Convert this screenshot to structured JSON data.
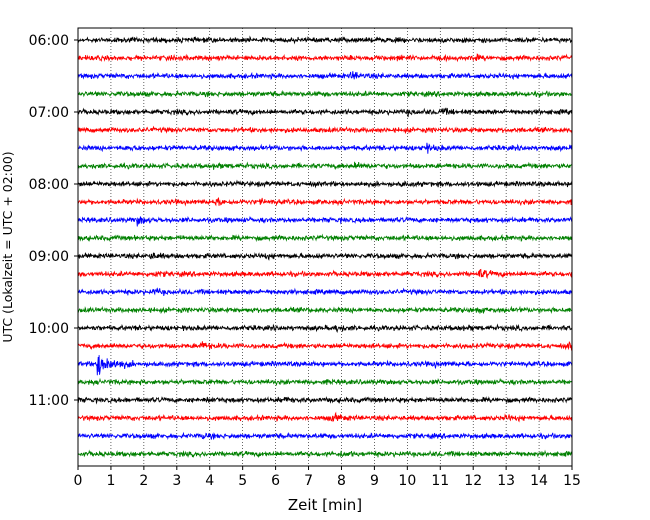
{
  "chart_data": {
    "type": "line",
    "title": "",
    "xlabel": "Zeit  [min]",
    "ylabel": "UTC (Lokalzeit = UTC + 02:00)",
    "xlim": [
      0,
      15
    ],
    "x_ticks": [
      "0",
      "1",
      "2",
      "3",
      "4",
      "5",
      "6",
      "7",
      "8",
      "9",
      "10",
      "11",
      "12",
      "13",
      "14",
      "15"
    ],
    "y_tick_labels": [
      "06:00",
      "07:00",
      "08:00",
      "09:00",
      "10:00",
      "11:00"
    ],
    "grid": "vertical dotted",
    "trace_start_times": [
      "06:00",
      "06:15",
      "06:30",
      "06:45",
      "07:00",
      "07:15",
      "07:30",
      "07:45",
      "08:00",
      "08:15",
      "08:30",
      "08:45",
      "09:00",
      "09:15",
      "09:30",
      "09:45",
      "10:00",
      "10:15",
      "10:30",
      "10:45",
      "11:00",
      "11:15",
      "11:30",
      "11:45"
    ],
    "trace_colors": [
      "#000000",
      "#ff0000",
      "#0000ff",
      "#008000"
    ],
    "events": [
      {
        "trace": 1,
        "t": 12.0,
        "amp": 1.6
      },
      {
        "trace": 1,
        "t": 9.7,
        "amp": 1.2
      },
      {
        "trace": 2,
        "t": 8.3,
        "amp": 2.8
      },
      {
        "trace": 4,
        "t": 11.0,
        "amp": 1.8
      },
      {
        "trace": 4,
        "t": 10.0,
        "amp": 1.2
      },
      {
        "trace": 6,
        "t": 10.5,
        "amp": 3.2
      },
      {
        "trace": 6,
        "t": 1.5,
        "amp": 1.2
      },
      {
        "trace": 7,
        "t": 8.4,
        "amp": 1.8
      },
      {
        "trace": 7,
        "t": 4.1,
        "amp": 1.2
      },
      {
        "trace": 8,
        "t": 9.8,
        "amp": 1.3
      },
      {
        "trace": 9,
        "t": 4.2,
        "amp": 2.0
      },
      {
        "trace": 9,
        "t": 5.5,
        "amp": 1.3
      },
      {
        "trace": 10,
        "t": 1.8,
        "amp": 3.0
      },
      {
        "trace": 12,
        "t": 2.2,
        "amp": 2.0
      },
      {
        "trace": 12,
        "t": 5.6,
        "amp": 1.3
      },
      {
        "trace": 13,
        "t": 12.2,
        "amp": 3.0
      },
      {
        "trace": 13,
        "t": 2.3,
        "amp": 1.2
      },
      {
        "trace": 14,
        "t": 2.3,
        "amp": 1.6
      },
      {
        "trace": 15,
        "t": 12.1,
        "amp": 1.2
      },
      {
        "trace": 16,
        "t": 7.8,
        "amp": 2.0
      },
      {
        "trace": 16,
        "t": 11.5,
        "amp": 1.2
      },
      {
        "trace": 17,
        "t": 3.7,
        "amp": 2.4
      },
      {
        "trace": 17,
        "t": 14.9,
        "amp": 2.2
      },
      {
        "trace": 18,
        "t": 0.6,
        "amp": 11.0
      },
      {
        "trace": 18,
        "t": 10.8,
        "amp": 1.4
      },
      {
        "trace": 20,
        "t": 6.2,
        "amp": 1.6
      },
      {
        "trace": 20,
        "t": 3.9,
        "amp": 1.2
      },
      {
        "trace": 21,
        "t": 7.7,
        "amp": 2.8
      },
      {
        "trace": 21,
        "t": 13.0,
        "amp": 1.6
      },
      {
        "trace": 22,
        "t": 3.8,
        "amp": 1.2
      },
      {
        "trace": 23,
        "t": 8.0,
        "amp": 1.2
      }
    ]
  }
}
